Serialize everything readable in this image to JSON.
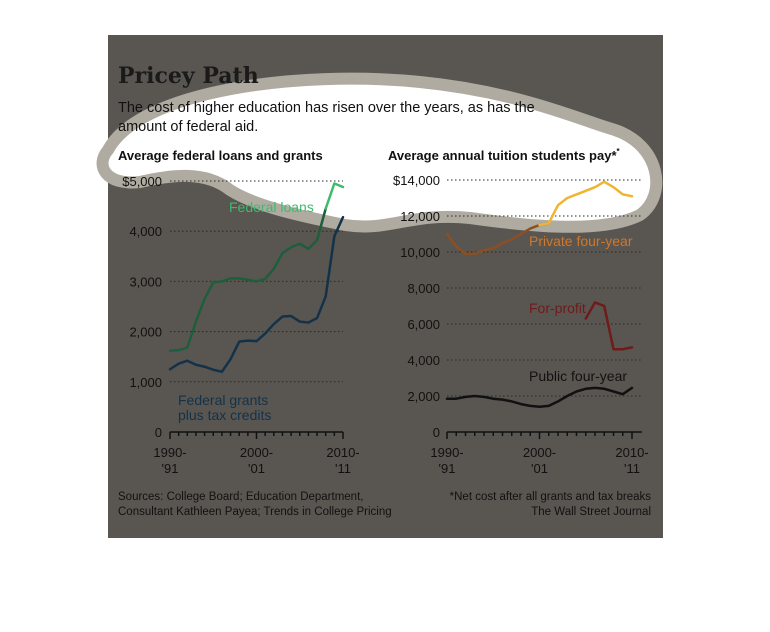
{
  "title": "Pricey Path",
  "subtitle_line1": "The cost of higher education has risen over the years, as has the",
  "subtitle_line2": "amount of federal aid.",
  "source_line1": "Sources: College Board; Education Department,",
  "source_line2": "Consultant Kathleen Payea; Trends in College Pricing",
  "footnote": "*Net cost after all grants and tax breaks",
  "publisher": "The Wall Street Journal",
  "colors": {
    "background": "#595651",
    "federal_loans": "#1e5e3c",
    "federal_loans_label": "#3dbb6e",
    "federal_grants": "#13324a",
    "private": "#8b4f23",
    "private_label": "#d0772c",
    "private_highlight": "#f0b530",
    "for_profit": "#6e1b1b",
    "public": "#111111",
    "highlight_stroke": "#b0aba1",
    "highlight_fill": "#ffffff"
  },
  "chart_data": [
    {
      "type": "line",
      "title": "Average federal loans and grants",
      "x": [
        1990,
        1991,
        1992,
        1993,
        1994,
        1995,
        1996,
        1997,
        1998,
        1999,
        2000,
        2001,
        2002,
        2003,
        2004,
        2005,
        2006,
        2007,
        2008,
        2009,
        2010
      ],
      "ylim": [
        0,
        5000
      ],
      "yticks": [
        0,
        1000,
        2000,
        3000,
        4000,
        5000
      ],
      "ytick_labels": [
        "0",
        "1,000",
        "2,000",
        "3,000",
        "4,000",
        "$5,000"
      ],
      "xtick_labels": [
        [
          "1990-",
          "'91"
        ],
        [
          "2000-",
          "'01"
        ],
        [
          "2010-",
          "'11"
        ]
      ],
      "series": [
        {
          "name": "Federal loans",
          "values": [
            1620,
            1630,
            1680,
            2200,
            2650,
            2980,
            3000,
            3060,
            3060,
            3030,
            3000,
            3050,
            3250,
            3560,
            3680,
            3750,
            3650,
            3820,
            4450,
            4950,
            4880
          ]
        },
        {
          "name": "Federal grants plus tax credits",
          "values": [
            1250,
            1360,
            1420,
            1340,
            1300,
            1240,
            1200,
            1450,
            1800,
            1820,
            1810,
            1960,
            2150,
            2300,
            2310,
            2200,
            2180,
            2270,
            2700,
            3900,
            4280
          ]
        }
      ]
    },
    {
      "type": "line",
      "title": "Average annual tuition students pay*",
      "x": [
        1990,
        1991,
        1992,
        1993,
        1994,
        1995,
        1996,
        1997,
        1998,
        1999,
        2000,
        2001,
        2002,
        2003,
        2004,
        2005,
        2006,
        2007,
        2008,
        2009,
        2010
      ],
      "ylim": [
        0,
        14000
      ],
      "yticks": [
        0,
        2000,
        4000,
        6000,
        8000,
        10000,
        12000,
        14000
      ],
      "ytick_labels": [
        "0",
        "2,000",
        "4,000",
        "6,000",
        "8,000",
        "10,000",
        "12,000",
        "$14,000"
      ],
      "xtick_labels": [
        [
          "1990-",
          "'91"
        ],
        [
          "2000-",
          "'01"
        ],
        [
          "2010-",
          "'11"
        ]
      ],
      "series": [
        {
          "name": "Private four-year",
          "values": [
            11000,
            10300,
            9900,
            9900,
            10100,
            10200,
            10500,
            10700,
            11000,
            11300,
            11500,
            11600,
            12600,
            13000,
            13200,
            13400,
            13600,
            13900,
            13600,
            13200,
            13100
          ]
        },
        {
          "name": "For-profit",
          "x": [
            2005,
            2006,
            2007,
            2008,
            2009,
            2010
          ],
          "values": [
            6300,
            7200,
            7000,
            4600,
            4600,
            4700
          ]
        },
        {
          "name": "Public four-year",
          "values": [
            1850,
            1850,
            1950,
            2000,
            1950,
            1850,
            1800,
            1700,
            1550,
            1450,
            1400,
            1450,
            1700,
            2000,
            2250,
            2400,
            2450,
            2400,
            2250,
            2100,
            2450
          ]
        }
      ]
    }
  ]
}
